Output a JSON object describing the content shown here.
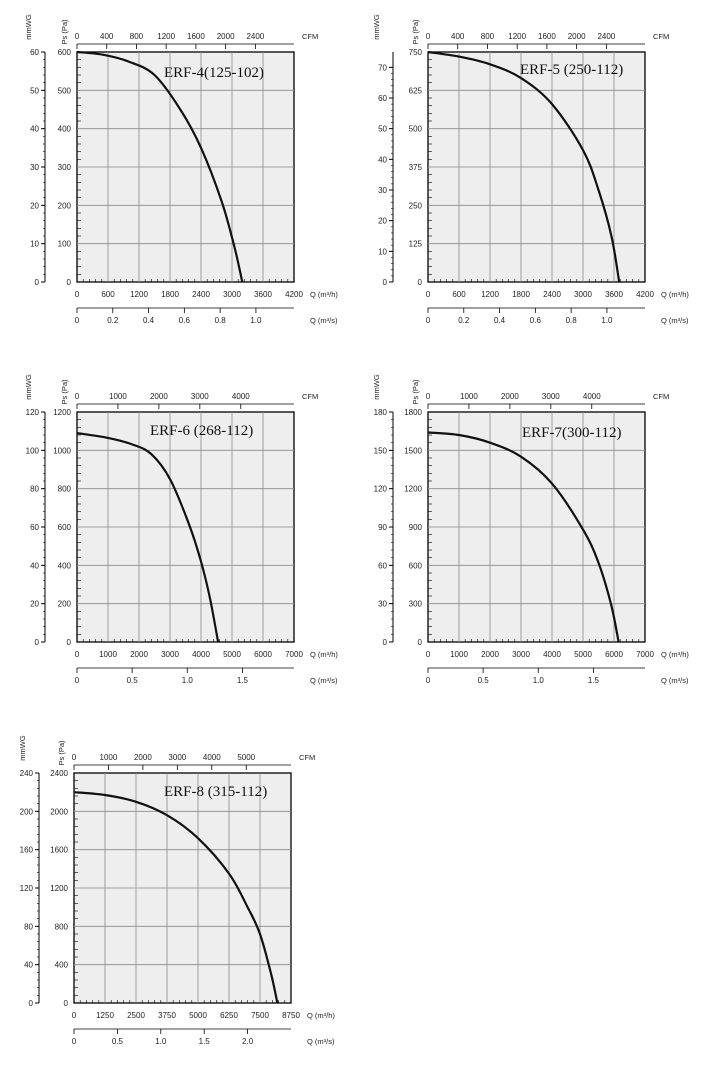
{
  "page": {
    "background": "#ffffff",
    "plot_fill": "#eeeeee",
    "grid_color": "#8a8a8a",
    "curve_color": "#111111"
  },
  "chart_data": [
    {
      "type": "line",
      "title": "ERF-4(125-102)",
      "q_m3h_label": "Q (m³/h)",
      "q_m3s_label": "Q (m³/s)",
      "cfm_label": "CFM",
      "ps_label": "Ps (Pa)",
      "mmwg_label": "mmWG",
      "x_m3h_ticks": [
        0,
        600,
        1200,
        1800,
        2400,
        3000,
        3600,
        4200
      ],
      "x_m3s_ticks": [
        "0",
        "0.2",
        "0.4",
        "0.6",
        "0.8",
        "1.0"
      ],
      "x_cfm_ticks": [
        "0",
        "400",
        "800",
        "1200",
        "1600",
        "2000",
        "2400"
      ],
      "y_pa_ticks": [
        0,
        100,
        200,
        300,
        400,
        500,
        600
      ],
      "y_mmwg_ticks": [
        0,
        10,
        20,
        30,
        40,
        50,
        60
      ],
      "xlim": [
        0,
        4200
      ],
      "ylim": [
        0,
        600
      ],
      "series": [
        {
          "x": [
            0,
            500,
            1000,
            1500,
            2000,
            2400,
            2800,
            3050,
            3200
          ],
          "y": [
            600,
            593,
            575,
            540,
            450,
            350,
            210,
            90,
            0
          ]
        }
      ]
    },
    {
      "type": "line",
      "title": "ERF-5 (250-112)",
      "q_m3h_label": "Q (m³/h)",
      "q_m3s_label": "Q (m³/s)",
      "cfm_label": "CFM",
      "ps_label": "Ps (Pa)",
      "mmwg_label": "mmWG",
      "x_m3h_ticks": [
        0,
        600,
        1200,
        1800,
        2400,
        3000,
        3600,
        4200
      ],
      "x_m3s_ticks": [
        "0",
        "0.2",
        "0.4",
        "0.6",
        "0.8",
        "1.0"
      ],
      "x_cfm_ticks": [
        "0",
        "400",
        "800",
        "1200",
        "1600",
        "2000",
        "2400"
      ],
      "y_pa_ticks": [
        0,
        125,
        250,
        375,
        500,
        625,
        750
      ],
      "y_mmwg_ticks": [
        0,
        10,
        20,
        30,
        40,
        50,
        60,
        70
      ],
      "xlim": [
        0,
        4200
      ],
      "ylim": [
        0,
        750
      ],
      "series": [
        {
          "x": [
            0,
            600,
            1200,
            1800,
            2400,
            3000,
            3300,
            3550,
            3700
          ],
          "y": [
            750,
            735,
            710,
            665,
            580,
            430,
            300,
            150,
            0
          ]
        }
      ]
    },
    {
      "type": "line",
      "title": "ERF-6 (268-112)",
      "q_m3h_label": "Q (m³/h)",
      "q_m3s_label": "Q (m³/s)",
      "cfm_label": "CFM",
      "ps_label": "Ps (Pa)",
      "mmwg_label": "mmWG",
      "x_m3h_ticks": [
        0,
        1000,
        2000,
        3000,
        4000,
        5000,
        6000,
        7000
      ],
      "x_m3s_ticks": [
        "0",
        "0.5",
        "1.0",
        "1.5"
      ],
      "x_cfm_ticks": [
        "0",
        "1000",
        "2000",
        "3000",
        "4000"
      ],
      "y_pa_ticks": [
        0,
        200,
        400,
        600,
        800,
        1000,
        1200
      ],
      "y_mmwg_ticks": [
        0,
        20,
        40,
        60,
        80,
        100,
        120
      ],
      "xlim": [
        0,
        7000
      ],
      "ylim": [
        0,
        1200
      ],
      "series": [
        {
          "x": [
            0,
            1000,
            1800,
            2400,
            3000,
            3600,
            4000,
            4300,
            4550
          ],
          "y": [
            1090,
            1065,
            1030,
            980,
            850,
            620,
            420,
            220,
            0
          ]
        }
      ]
    },
    {
      "type": "line",
      "title": "ERF-7(300-112)",
      "q_m3h_label": "Q (m³/h)",
      "q_m3s_label": "Q (m³/s)",
      "cfm_label": "CFM",
      "ps_label": "Ps (Pa)",
      "mmwg_label": "mmWG",
      "x_m3h_ticks": [
        0,
        1000,
        2000,
        3000,
        4000,
        5000,
        6000,
        7000
      ],
      "x_m3s_ticks": [
        "0",
        "0.5",
        "1.0",
        "1.5"
      ],
      "x_cfm_ticks": [
        "0",
        "1000",
        "2000",
        "3000",
        "4000"
      ],
      "y_pa_ticks": [
        0,
        300,
        600,
        900,
        1200,
        1500,
        1800
      ],
      "y_mmwg_ticks": [
        0,
        30,
        60,
        90,
        120,
        150,
        180
      ],
      "xlim": [
        0,
        7000
      ],
      "ylim": [
        0,
        1800
      ],
      "series": [
        {
          "x": [
            0,
            1000,
            2000,
            3000,
            4000,
            5000,
            5500,
            5900,
            6150
          ],
          "y": [
            1640,
            1620,
            1560,
            1450,
            1240,
            880,
            620,
            300,
            0
          ]
        }
      ]
    },
    {
      "type": "line",
      "title": "ERF-8 (315-112)",
      "q_m3h_label": "Q (m³/h)",
      "q_m3s_label": "Q (m³/s)",
      "cfm_label": "CFM",
      "ps_label": "Ps (Pa)",
      "mmwg_label": "mmWG",
      "x_m3h_ticks": [
        0,
        1250,
        2500,
        3750,
        5000,
        6250,
        7500,
        8750
      ],
      "x_m3s_ticks": [
        "0",
        "0.5",
        "1.0",
        "1.5",
        "2.0"
      ],
      "x_cfm_ticks": [
        "0",
        "1000",
        "2000",
        "3000",
        "4000",
        "5000"
      ],
      "y_pa_ticks": [
        0,
        400,
        800,
        1200,
        1600,
        2000,
        2400
      ],
      "y_mmwg_ticks": [
        0,
        40,
        80,
        120,
        160,
        200,
        240
      ],
      "xlim": [
        0,
        8750
      ],
      "ylim": [
        0,
        2400
      ],
      "series": [
        {
          "x": [
            0,
            1250,
            2500,
            3750,
            5000,
            6250,
            7000,
            7500,
            7950,
            8200
          ],
          "y": [
            2200,
            2170,
            2100,
            1960,
            1720,
            1350,
            1000,
            720,
            300,
            0
          ]
        }
      ]
    }
  ]
}
